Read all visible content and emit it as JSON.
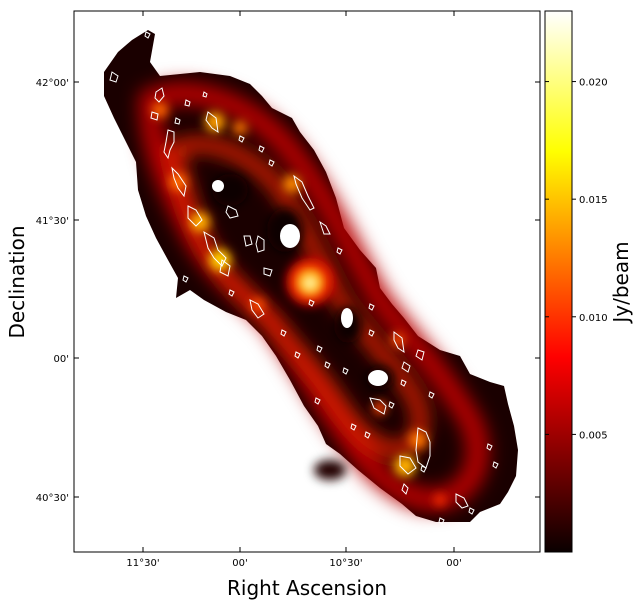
{
  "chart_data": {
    "type": "heatmap",
    "title": "",
    "xlabel": "Right Ascension",
    "ylabel": "Declination",
    "x_ticks": [
      "11°30'",
      "00'",
      "10°30'",
      "00'"
    ],
    "y_ticks": [
      "42°00'",
      "41°30'",
      "00'",
      "40°30'"
    ],
    "colorbar": {
      "label": "Jy/beam",
      "colormap": "hot",
      "range": [
        0.0,
        0.023
      ],
      "ticks": [
        {
          "value": 0.005,
          "label": "0.005"
        },
        {
          "value": 0.01,
          "label": "0.010"
        },
        {
          "value": 0.015,
          "label": "0.015"
        },
        {
          "value": 0.02,
          "label": "0.020"
        }
      ]
    },
    "contour_color": "#ffffff",
    "background_color": "#ffffff"
  }
}
